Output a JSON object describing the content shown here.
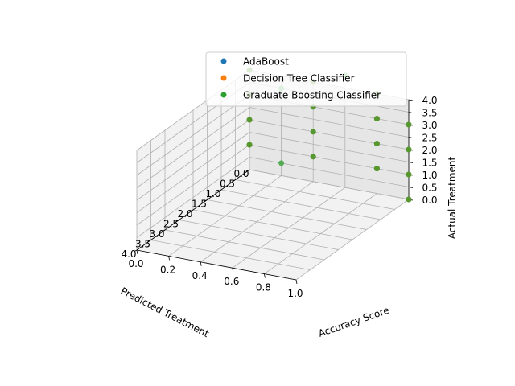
{
  "chart_data": {
    "type": "scatter",
    "title": "",
    "xlabel": "Predicted Treatment",
    "ylabel": "Accuracy Score",
    "zlabel": "Actual Treatment",
    "xlim": [
      0,
      4
    ],
    "ylim": [
      0,
      1
    ],
    "zlim": [
      0,
      4
    ],
    "x_ticks": [
      "0.0",
      "0.5",
      "1.0",
      "1.5",
      "2.0",
      "2.5",
      "3.0",
      "3.5",
      "4.0"
    ],
    "y_ticks": [
      "0.0",
      "0.2",
      "0.4",
      "0.6",
      "0.8",
      "1.0"
    ],
    "z_ticks": [
      "0.0",
      "0.5",
      "1.0",
      "1.5",
      "2.0",
      "2.5",
      "3.0",
      "3.5",
      "4.0"
    ],
    "grid": true,
    "legend_position": "top-right",
    "series": [
      {
        "name": "AdaBoost",
        "color": "#1f77b4",
        "points": [
          {
            "x": 0,
            "y": 0.0,
            "z": 1
          },
          {
            "x": 0,
            "y": 0.0,
            "z": 2
          },
          {
            "x": 0,
            "y": 0.0,
            "z": 3
          },
          {
            "x": 0,
            "y": 0.0,
            "z": 4
          },
          {
            "x": 0,
            "y": 0.4,
            "z": 1
          },
          {
            "x": 0,
            "y": 0.4,
            "z": 2
          },
          {
            "x": 0,
            "y": 0.4,
            "z": 3
          },
          {
            "x": 0,
            "y": 0.4,
            "z": 4
          },
          {
            "x": 0,
            "y": 0.8,
            "z": 1
          },
          {
            "x": 0,
            "y": 0.8,
            "z": 2
          },
          {
            "x": 0,
            "y": 0.8,
            "z": 3
          },
          {
            "x": 0,
            "y": 0.8,
            "z": 4
          },
          {
            "x": 0,
            "y": 1.0,
            "z": 0
          },
          {
            "x": 0,
            "y": 1.0,
            "z": 1
          },
          {
            "x": 0,
            "y": 1.0,
            "z": 2
          },
          {
            "x": 0,
            "y": 1.0,
            "z": 3
          }
        ]
      },
      {
        "name": "Decision Tree Classifier",
        "color": "#ff7f0e",
        "points": [
          {
            "x": 0,
            "y": 0.0,
            "z": 1
          },
          {
            "x": 0,
            "y": 0.0,
            "z": 2
          },
          {
            "x": 0,
            "y": 0.0,
            "z": 3
          },
          {
            "x": 0,
            "y": 0.0,
            "z": 4
          },
          {
            "x": 0,
            "y": 0.4,
            "z": 1
          },
          {
            "x": 0,
            "y": 0.4,
            "z": 2
          },
          {
            "x": 0,
            "y": 0.4,
            "z": 3
          },
          {
            "x": 0,
            "y": 0.4,
            "z": 4
          },
          {
            "x": 0,
            "y": 0.8,
            "z": 1
          },
          {
            "x": 0,
            "y": 0.8,
            "z": 2
          },
          {
            "x": 0,
            "y": 0.8,
            "z": 3
          },
          {
            "x": 0,
            "y": 0.8,
            "z": 4
          },
          {
            "x": 0,
            "y": 1.0,
            "z": 0
          },
          {
            "x": 0,
            "y": 1.0,
            "z": 1
          },
          {
            "x": 0,
            "y": 1.0,
            "z": 2
          },
          {
            "x": 0,
            "y": 1.0,
            "z": 3
          }
        ]
      },
      {
        "name": "Graduate Boosting Classifier",
        "color": "#2ca02c",
        "points": [
          {
            "x": 0,
            "y": 0.0,
            "z": 1
          },
          {
            "x": 0,
            "y": 0.0,
            "z": 2
          },
          {
            "x": 0,
            "y": 0.0,
            "z": 3
          },
          {
            "x": 0,
            "y": 0.0,
            "z": 4
          },
          {
            "x": 0,
            "y": 0.2,
            "z": 0.5
          },
          {
            "x": 0,
            "y": 0.4,
            "z": 1
          },
          {
            "x": 0,
            "y": 0.4,
            "z": 2
          },
          {
            "x": 0,
            "y": 0.4,
            "z": 3
          },
          {
            "x": 0,
            "y": 0.4,
            "z": 4
          },
          {
            "x": 0,
            "y": 0.2,
            "z": 3.5
          },
          {
            "x": 0,
            "y": 0.6,
            "z": 4.5
          },
          {
            "x": 0,
            "y": 0.8,
            "z": 1
          },
          {
            "x": 0,
            "y": 0.8,
            "z": 2
          },
          {
            "x": 0,
            "y": 0.8,
            "z": 3
          },
          {
            "x": 0,
            "y": 0.8,
            "z": 4
          },
          {
            "x": 0,
            "y": 1.0,
            "z": 0
          },
          {
            "x": 0,
            "y": 1.0,
            "z": 1
          },
          {
            "x": 0,
            "y": 1.0,
            "z": 2
          },
          {
            "x": 0,
            "y": 1.0,
            "z": 3
          }
        ]
      }
    ]
  }
}
